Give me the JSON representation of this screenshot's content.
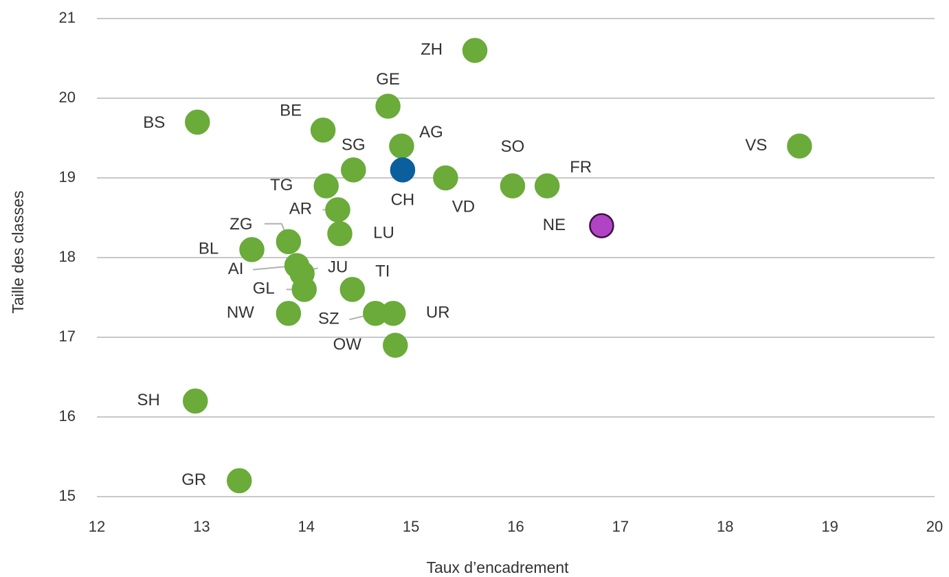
{
  "chart_data": {
    "type": "scatter",
    "x_label": "Taux d’encadrement",
    "y_label": "Taille des classes",
    "labels": [
      "ZH",
      "GE",
      "BS",
      "BE",
      "AG",
      "SG",
      "CH",
      "VD",
      "SO",
      "FR",
      "TG",
      "AR",
      "ZG",
      "LU",
      "BL",
      "AI",
      "JU",
      "GL",
      "TI",
      "NW",
      "SZ",
      "UR",
      "OW",
      "SH",
      "GR",
      "VS",
      "NE"
    ],
    "x": [
      15.61,
      14.78,
      12.96,
      14.16,
      14.91,
      14.45,
      14.92,
      15.33,
      15.97,
      16.3,
      14.19,
      14.3,
      13.83,
      14.32,
      13.48,
      13.91,
      13.96,
      13.98,
      14.44,
      13.83,
      14.66,
      14.83,
      14.85,
      12.94,
      13.36,
      18.71,
      16.82
    ],
    "y": [
      20.6,
      19.9,
      19.7,
      19.6,
      19.4,
      19.1,
      19.1,
      19.0,
      18.9,
      18.9,
      18.9,
      18.6,
      18.2,
      18.3,
      18.1,
      17.9,
      17.8,
      17.6,
      17.6,
      17.3,
      17.3,
      17.3,
      16.9,
      16.2,
      15.2,
      19.4,
      18.4
    ],
    "colors": [
      "#6aab3a",
      "#6aab3a",
      "#6aab3a",
      "#6aab3a",
      "#6aab3a",
      "#6aab3a",
      "#0b5f9c",
      "#6aab3a",
      "#6aab3a",
      "#6aab3a",
      "#6aab3a",
      "#6aab3a",
      "#6aab3a",
      "#6aab3a",
      "#6aab3a",
      "#6aab3a",
      "#6aab3a",
      "#6aab3a",
      "#6aab3a",
      "#6aab3a",
      "#6aab3a",
      "#6aab3a",
      "#6aab3a",
      "#6aab3a",
      "#6aab3a",
      "#6aab3a",
      "#b044c4"
    ],
    "edgecolors": [
      "#6aab3a",
      "#6aab3a",
      "#6aab3a",
      "#6aab3a",
      "#6aab3a",
      "#6aab3a",
      "#0b5f9c",
      "#6aab3a",
      "#6aab3a",
      "#6aab3a",
      "#6aab3a",
      "#6aab3a",
      "#6aab3a",
      "#6aab3a",
      "#6aab3a",
      "#6aab3a",
      "#6aab3a",
      "#6aab3a",
      "#6aab3a",
      "#6aab3a",
      "#6aab3a",
      "#6aab3a",
      "#6aab3a",
      "#6aab3a",
      "#6aab3a",
      "#6aab3a",
      "#3a1040"
    ],
    "xlim": [
      12,
      20
    ],
    "xticks": [
      12,
      13,
      14,
      15,
      16,
      17,
      18,
      19,
      20
    ],
    "ylim": [
      15,
      21
    ],
    "yticks": [
      15,
      16,
      17,
      18,
      19,
      20,
      21
    ],
    "grid": true
  }
}
